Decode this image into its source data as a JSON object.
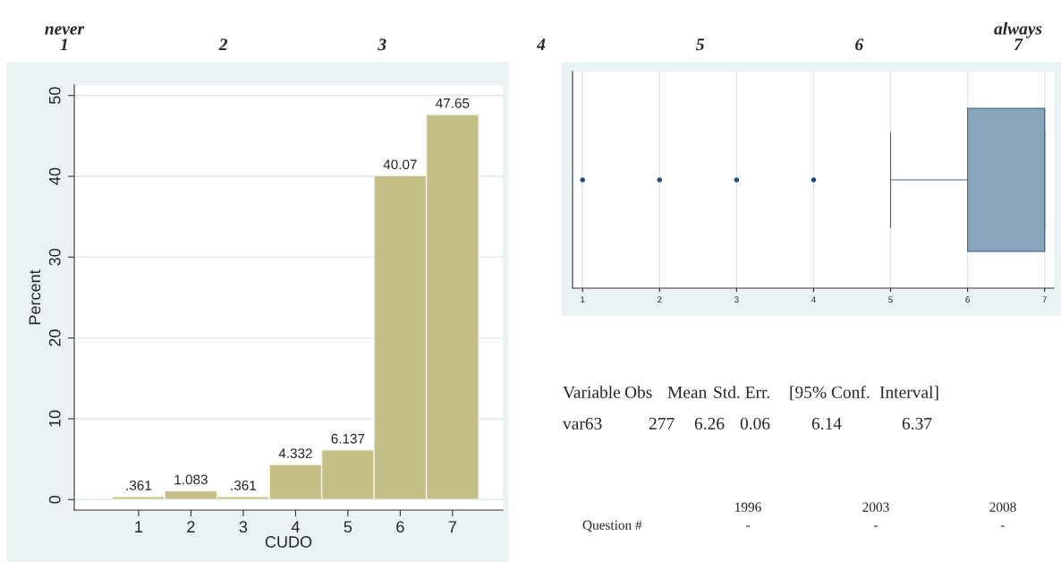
{
  "chart_data": [
    {
      "type": "bar",
      "categories": [
        "1",
        "2",
        "3",
        "4",
        "5",
        "6",
        "7"
      ],
      "values": [
        0.361,
        1.083,
        0.361,
        4.332,
        6.137,
        40.07,
        47.65
      ],
      "value_labels": [
        ".361",
        "1.083",
        ".361",
        "4.332",
        "6.137",
        "40.07",
        "47.65"
      ],
      "color": "#c4bf87",
      "xlabel": "CUDO",
      "ylabel": "Percent",
      "ylim": [
        -1.3,
        51.3
      ],
      "yticks": [
        0,
        10,
        20,
        30,
        40,
        50
      ],
      "grid": "y"
    },
    {
      "type": "box",
      "orientation": "horizontal",
      "categories": [
        null
      ],
      "boxes": [
        {
          "low": 5,
          "q1": 6,
          "median": 7,
          "q3": 7,
          "high": 7,
          "outliers": [
            1,
            2,
            3,
            4
          ]
        }
      ],
      "color": "#8aa5bb",
      "marker": "circle",
      "xlim": [
        0.87,
        7.12
      ],
      "xticks": [
        1,
        2,
        3,
        4,
        5,
        6,
        7
      ],
      "x2lim": [
        0.595,
        7.27
      ],
      "x2ticks": [
        {
          "value": 1,
          "label": "never\n1"
        },
        2,
        3,
        4,
        5,
        6,
        {
          "value": 7,
          "label": "always\n7"
        }
      ],
      "grid": "x"
    },
    {
      "type": "other",
      "categories": [
        "Variable",
        "Obs",
        "Mean",
        "Std. Err.",
        "[95% Conf.",
        "Interval]"
      ],
      "value_labels": [
        "var63",
        "277",
        "6.26",
        "0.06",
        "6.14",
        "6.37"
      ]
    },
    {
      "type": "other",
      "categories": [
        "1996",
        "2003",
        "2008"
      ],
      "value_labels": [
        "-",
        "-",
        "-"
      ],
      "annotations": [
        "Question #"
      ]
    }
  ]
}
